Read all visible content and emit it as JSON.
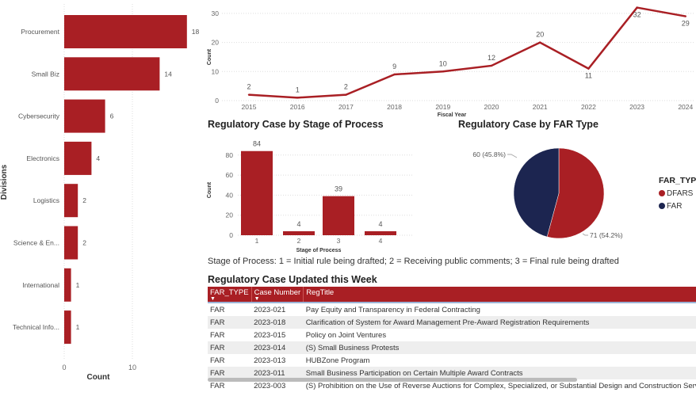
{
  "chart_data": [
    {
      "type": "bar",
      "orientation": "horizontal",
      "categories": [
        "Procurement",
        "Small Biz",
        "Cybersecurity",
        "Electronics",
        "Logistics",
        "Science & En...",
        "International",
        "Technical Info..."
      ],
      "values": [
        18,
        14,
        6,
        4,
        2,
        2,
        1,
        1
      ],
      "xlabel": "Count",
      "ylabel": "Divisions",
      "xticks": [
        "0",
        "10"
      ],
      "xlim": [
        0,
        20
      ],
      "grid": true,
      "color": "#a91f24"
    },
    {
      "type": "line",
      "x": [
        "2015",
        "2016",
        "2017",
        "2018",
        "2019",
        "2020",
        "2021",
        "2022",
        "2023",
        "2024"
      ],
      "values": [
        2,
        1,
        2,
        9,
        10,
        12,
        20,
        11,
        32,
        29
      ],
      "xlabel": "Fiscal Year",
      "ylabel": "Count",
      "yticks": [
        "0",
        "10",
        "20",
        "30"
      ],
      "ylim": [
        0,
        30
      ],
      "grid": true,
      "color": "#a91f24"
    },
    {
      "type": "bar",
      "title": "Regulatory Case by Stage of Process",
      "categories": [
        "1",
        "2",
        "3",
        "4"
      ],
      "values": [
        84,
        4,
        39,
        4
      ],
      "xlabel": "Stage of Process",
      "ylabel": "Count",
      "yticks": [
        "0",
        "20",
        "40",
        "60",
        "80"
      ],
      "ylim": [
        0,
        90
      ],
      "grid": true,
      "color": "#a91f24"
    },
    {
      "type": "pie",
      "title": "Regulatory Case by FAR Type",
      "legend_title": "FAR_TYPE",
      "legend_placement": "right",
      "slices": [
        {
          "name": "DFARS",
          "value": 71,
          "label": "71 (54.2%)",
          "color": "#a91f24"
        },
        {
          "name": "FAR",
          "value": 60,
          "label": "60 (45.8%)",
          "color": "#1c2550"
        }
      ]
    }
  ],
  "note": "Stage of Process: 1 = Initial rule being drafted; 2 = Receiving public comments; 3 = Final rule being drafted",
  "table": {
    "title": "Regulatory Case Updated this Week",
    "columns": [
      "FAR_TYPE",
      "Case Number",
      "RegTitle"
    ],
    "rows": [
      [
        "FAR",
        "2023-021",
        "Pay Equity and Transparency in Federal Contracting"
      ],
      [
        "FAR",
        "2023-018",
        "Clarification of System for Award Management Pre-Award Registration Requirements"
      ],
      [
        "FAR",
        "2023-015",
        "Policy on Joint Ventures"
      ],
      [
        "FAR",
        "2023-014",
        "(S) Small Business Protests"
      ],
      [
        "FAR",
        "2023-013",
        "HUBZone Program"
      ],
      [
        "FAR",
        "2023-011",
        "Small Business Participation on Certain Multiple Award Contracts"
      ],
      [
        "FAR",
        "2023-003",
        "(S) Prohibition on the Use of Reverse Auctions for Complex, Specialized, or Substantial Design and Construction Services"
      ]
    ]
  }
}
